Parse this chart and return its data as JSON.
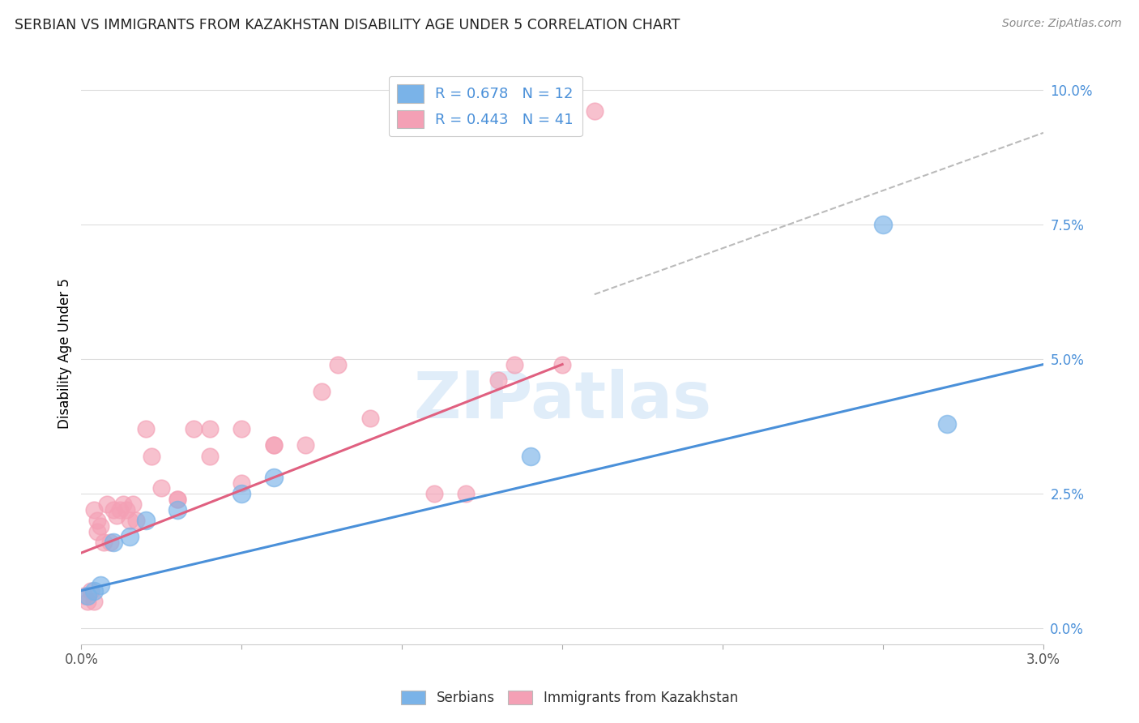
{
  "title": "SERBIAN VS IMMIGRANTS FROM KAZAKHSTAN DISABILITY AGE UNDER 5 CORRELATION CHART",
  "source": "Source: ZipAtlas.com",
  "ylabel": "Disability Age Under 5",
  "xlim": [
    0.0,
    0.03
  ],
  "ylim": [
    -0.003,
    0.105
  ],
  "serbian_color": "#7ab3e8",
  "kazakh_color": "#f4a0b5",
  "serbian_line_color": "#4a90d9",
  "kazakh_line_color": "#e06080",
  "dash_color": "#aaaaaa",
  "serbian_R": 0.678,
  "serbian_N": 12,
  "kazakh_R": 0.443,
  "kazakh_N": 41,
  "watermark": "ZIPatlas",
  "ytick_vals": [
    0.0,
    0.025,
    0.05,
    0.075,
    0.1
  ],
  "xtick_vals": [
    0.0,
    0.005,
    0.01,
    0.015,
    0.02,
    0.025,
    0.03
  ],
  "xtick_show": [
    0.0,
    0.03
  ],
  "serbian_points": [
    [
      0.0002,
      0.006
    ],
    [
      0.0004,
      0.007
    ],
    [
      0.0006,
      0.008
    ],
    [
      0.001,
      0.016
    ],
    [
      0.0015,
      0.017
    ],
    [
      0.002,
      0.02
    ],
    [
      0.003,
      0.022
    ],
    [
      0.005,
      0.025
    ],
    [
      0.006,
      0.028
    ],
    [
      0.014,
      0.032
    ],
    [
      0.025,
      0.075
    ],
    [
      0.027,
      0.038
    ]
  ],
  "kazakh_points": [
    [
      0.0001,
      0.006
    ],
    [
      0.0002,
      0.005
    ],
    [
      0.0003,
      0.007
    ],
    [
      0.0004,
      0.005
    ],
    [
      0.0004,
      0.022
    ],
    [
      0.0005,
      0.018
    ],
    [
      0.0005,
      0.02
    ],
    [
      0.0006,
      0.019
    ],
    [
      0.0007,
      0.016
    ],
    [
      0.0008,
      0.023
    ],
    [
      0.0009,
      0.016
    ],
    [
      0.001,
      0.022
    ],
    [
      0.0011,
      0.021
    ],
    [
      0.0012,
      0.022
    ],
    [
      0.0013,
      0.023
    ],
    [
      0.0014,
      0.022
    ],
    [
      0.0015,
      0.02
    ],
    [
      0.0016,
      0.023
    ],
    [
      0.0017,
      0.02
    ],
    [
      0.002,
      0.037
    ],
    [
      0.0022,
      0.032
    ],
    [
      0.0025,
      0.026
    ],
    [
      0.003,
      0.024
    ],
    [
      0.003,
      0.024
    ],
    [
      0.0035,
      0.037
    ],
    [
      0.004,
      0.032
    ],
    [
      0.004,
      0.037
    ],
    [
      0.005,
      0.027
    ],
    [
      0.005,
      0.037
    ],
    [
      0.006,
      0.034
    ],
    [
      0.006,
      0.034
    ],
    [
      0.007,
      0.034
    ],
    [
      0.0075,
      0.044
    ],
    [
      0.008,
      0.049
    ],
    [
      0.009,
      0.039
    ],
    [
      0.011,
      0.025
    ],
    [
      0.012,
      0.025
    ],
    [
      0.013,
      0.046
    ],
    [
      0.0135,
      0.049
    ],
    [
      0.015,
      0.049
    ],
    [
      0.016,
      0.096
    ]
  ],
  "kazakh_line_x": [
    0.0,
    0.015
  ],
  "kazakh_line_y": [
    0.014,
    0.049
  ],
  "serbian_line_x": [
    0.0,
    0.03
  ],
  "serbian_line_y": [
    0.007,
    0.049
  ],
  "dash_line_x": [
    0.016,
    0.03
  ],
  "dash_line_y": [
    0.062,
    0.092
  ]
}
